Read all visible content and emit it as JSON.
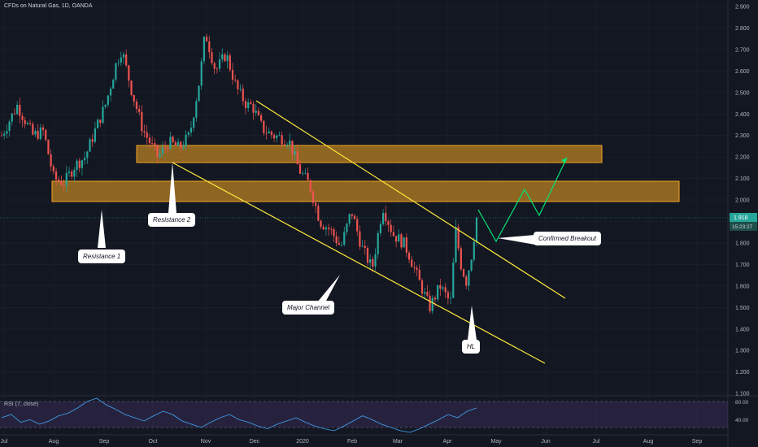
{
  "header": {
    "title": "CFDs on Natural Gas, 1D, OANDA"
  },
  "rsi": {
    "label": "RSI (7, close)",
    "levels": [
      "80.00",
      "40.00"
    ]
  },
  "price_tag": {
    "value": "1.918",
    "countdown": "15:23:27"
  },
  "callouts": {
    "resistance1": "Resistance 1",
    "resistance2": "Resistance 2",
    "major_channel": "Major Channel",
    "confirmed_breakout": "Confirmed Breakout",
    "hl": "HL"
  },
  "colors": {
    "up": "#26a69a",
    "down": "#ef5350",
    "zone": "#f5a623",
    "channel": "#ffeb3b",
    "projection": "#00e676",
    "background": "#131722"
  },
  "chart_data": {
    "type": "candlestick",
    "title": "CFDs on Natural Gas, 1D, OANDA",
    "x_ticks": [
      "Jul",
      "Aug",
      "Sep",
      "Oct",
      "Nov",
      "Dec",
      "2020",
      "Feb",
      "Mar",
      "Apr",
      "May",
      "Jun",
      "Jul",
      "Aug",
      "Sep"
    ],
    "y_ticks": [
      "2.900",
      "2.800",
      "2.700",
      "2.600",
      "2.500",
      "2.400",
      "2.300",
      "2.200",
      "2.100",
      "2.000",
      "1.900",
      "1.800",
      "1.700",
      "1.600",
      "1.500",
      "1.400",
      "1.300",
      "1.200",
      "1.100"
    ],
    "ylim": [
      1.1,
      2.9
    ],
    "close_path": [
      [
        0,
        2.3
      ],
      [
        3,
        2.44
      ],
      [
        6,
        2.3
      ],
      [
        8,
        2.32
      ],
      [
        10,
        2.1
      ],
      [
        12,
        2.08
      ],
      [
        14,
        2.16
      ],
      [
        16,
        2.2
      ],
      [
        18,
        2.33
      ],
      [
        20,
        2.45
      ],
      [
        22,
        2.64
      ],
      [
        23,
        2.7
      ],
      [
        25,
        2.5
      ],
      [
        27,
        2.33
      ],
      [
        29,
        2.24
      ],
      [
        30,
        2.2
      ],
      [
        32,
        2.27
      ],
      [
        34,
        2.24
      ],
      [
        36,
        2.3
      ],
      [
        38,
        2.57
      ],
      [
        39,
        2.78
      ],
      [
        41,
        2.6
      ],
      [
        43,
        2.68
      ],
      [
        45,
        2.52
      ],
      [
        47,
        2.44
      ],
      [
        48,
        2.44
      ],
      [
        50,
        2.33
      ],
      [
        52,
        2.3
      ],
      [
        55,
        2.28
      ],
      [
        57,
        2.14
      ],
      [
        59,
        2.07
      ],
      [
        61,
        1.9
      ],
      [
        63,
        1.86
      ],
      [
        65,
        1.78
      ],
      [
        67,
        1.95
      ],
      [
        69,
        1.78
      ],
      [
        71,
        1.68
      ],
      [
        73,
        1.97
      ],
      [
        75,
        1.84
      ],
      [
        77,
        1.8
      ],
      [
        78,
        1.75
      ],
      [
        80,
        1.62
      ],
      [
        82,
        1.5
      ],
      [
        84,
        1.6
      ],
      [
        86,
        1.52
      ],
      [
        87,
        1.86
      ],
      [
        88,
        1.7
      ],
      [
        89,
        1.62
      ],
      [
        90,
        1.74
      ],
      [
        91,
        1.918
      ]
    ],
    "zones": [
      {
        "name": "Resistance 1",
        "y": [
          2.0,
          2.09
        ]
      },
      {
        "name": "Resistance 2",
        "y": [
          2.18,
          2.26
        ]
      }
    ],
    "channel": {
      "upper": {
        "from": [
          "Dec",
          2.47
        ],
        "to": [
          "Jun",
          1.54
        ]
      },
      "lower": {
        "from": [
          "Oct",
          2.18
        ],
        "to": [
          "Jun",
          1.24
        ]
      }
    },
    "projection": [
      [
        1.95,
        1.8,
        2.05,
        1.93,
        2.19
      ]
    ],
    "rsi_series": [
      55,
      60,
      48,
      52,
      45,
      50,
      58,
      62,
      70,
      80,
      85,
      75,
      68,
      60,
      55,
      50,
      58,
      65,
      60,
      50,
      45,
      40,
      48,
      55,
      60,
      52,
      48,
      42,
      38,
      45,
      50,
      55,
      48,
      42,
      38,
      35,
      42,
      50,
      58,
      52,
      45,
      40,
      35,
      30,
      38,
      45,
      52,
      60,
      55,
      65,
      70
    ]
  }
}
